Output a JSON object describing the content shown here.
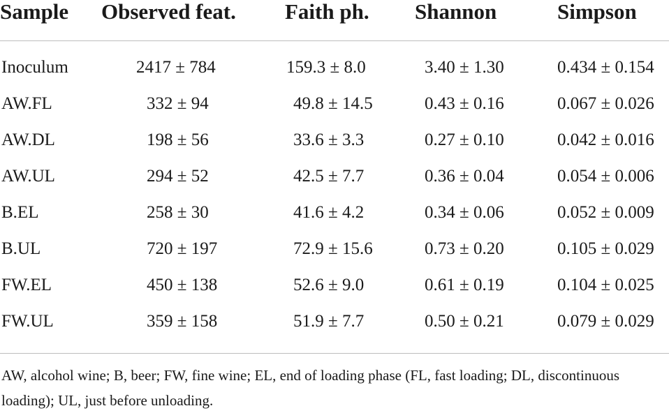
{
  "table": {
    "headers": [
      "Sample",
      "Observed feat.",
      "Faith ph.",
      "Shannon",
      "Simpson"
    ],
    "rows": [
      [
        "Inoculum",
        "2417 ± 784",
        "159.3 ± 8.0",
        "3.40 ± 1.30",
        "0.434 ± 0.154"
      ],
      [
        "AW.FL",
        "332 ± 94",
        "49.8 ± 14.5",
        "0.43 ± 0.16",
        "0.067 ± 0.026"
      ],
      [
        "AW.DL",
        "198 ± 56",
        "33.6 ± 3.3",
        "0.27 ± 0.10",
        "0.042 ± 0.016"
      ],
      [
        "AW.UL",
        "294 ± 52",
        "42.5 ± 7.7",
        "0.36 ± 0.04",
        "0.054 ± 0.006"
      ],
      [
        "B.EL",
        "258 ± 30",
        "41.6 ± 4.2",
        "0.34 ± 0.06",
        "0.052 ± 0.009"
      ],
      [
        "B.UL",
        "720 ± 197",
        "72.9 ± 15.6",
        "0.73 ± 0.20",
        "0.105 ± 0.029"
      ],
      [
        "FW.EL",
        "450 ± 138",
        "52.6 ± 9.0",
        "0.61 ± 0.19",
        "0.104 ± 0.025"
      ],
      [
        "FW.UL",
        "359 ± 158",
        "51.9 ± 7.7",
        "0.50 ± 0.21",
        "0.079 ± 0.029"
      ]
    ]
  },
  "footnote": "AW, alcohol wine; B, beer; FW, fine wine; EL, end of loading phase (FL, fast loading; DL, discontinuous loading); UL, just before unloading."
}
